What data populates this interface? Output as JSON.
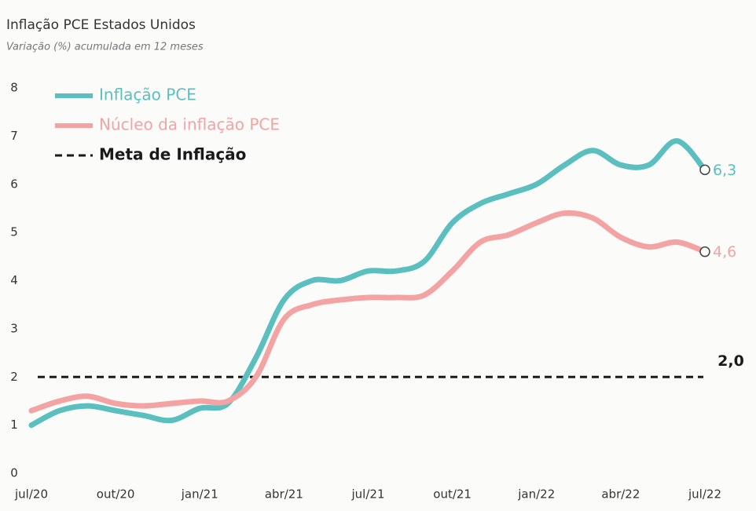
{
  "chart_data": {
    "type": "line",
    "title": "Inflação PCE Estados Unidos",
    "subtitle": "Variação (%) acumulada em 12 meses",
    "categories": [
      "jul/20",
      null,
      null,
      "out/20",
      null,
      null,
      "jan/21",
      null,
      null,
      "abr/21",
      null,
      null,
      "jul/21",
      null,
      null,
      "out/21",
      null,
      null,
      "jan/22",
      null,
      null,
      "abr/22",
      null,
      null,
      "jul/22"
    ],
    "series": [
      {
        "name": "Inflação PCE",
        "color": "#5bbfbf",
        "values": [
          1.0,
          1.3,
          1.4,
          1.3,
          1.2,
          1.1,
          1.35,
          1.45,
          2.4,
          3.6,
          4.0,
          4.0,
          4.2,
          4.2,
          4.4,
          5.2,
          5.6,
          5.8,
          6.0,
          6.4,
          6.7,
          6.4,
          6.4,
          6.9,
          6.3
        ],
        "value_labels": [
          null,
          null,
          null,
          null,
          null,
          null,
          null,
          null,
          null,
          null,
          null,
          null,
          null,
          null,
          null,
          null,
          null,
          null,
          null,
          null,
          null,
          null,
          null,
          null,
          "6,3"
        ]
      },
      {
        "name": "Núcleo da inflação PCE",
        "color": "#f4a3a3",
        "values": [
          1.3,
          1.5,
          1.6,
          1.45,
          1.4,
          1.45,
          1.5,
          1.5,
          2.0,
          3.2,
          3.5,
          3.6,
          3.65,
          3.65,
          3.7,
          4.2,
          4.8,
          4.95,
          5.2,
          5.4,
          5.3,
          4.9,
          4.7,
          4.8,
          4.6
        ],
        "value_labels": [
          null,
          null,
          null,
          null,
          null,
          null,
          null,
          null,
          null,
          null,
          null,
          null,
          null,
          null,
          null,
          null,
          null,
          null,
          null,
          null,
          null,
          null,
          null,
          null,
          "4,6"
        ]
      }
    ],
    "target": {
      "name": "Meta de Inflação",
      "value": 2,
      "label": "2,0",
      "color": "#1a1a1a"
    },
    "ylim": [
      0,
      8
    ],
    "yticks": [
      0,
      1,
      2,
      3,
      4,
      5,
      6,
      7,
      8
    ],
    "legend": "top-left"
  }
}
